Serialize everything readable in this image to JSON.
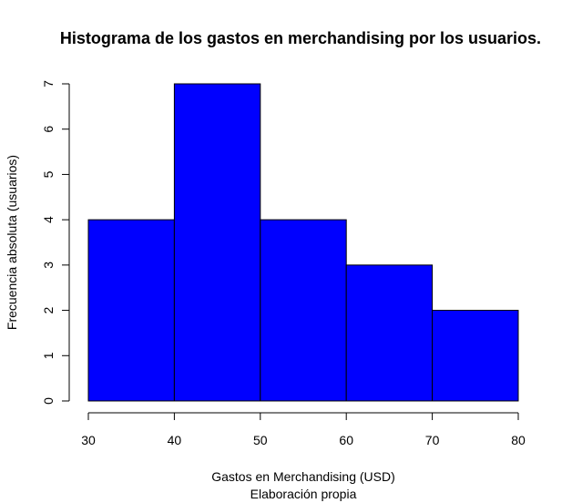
{
  "chart_data": {
    "type": "bar",
    "title": "Histograma de los gastos en merchandising por los usuarios.",
    "xlabel": "Gastos en Merchandising (USD)",
    "subcaption": "Elaboración propia",
    "ylabel": "Frecuencia absoluta (usuarios)",
    "bins": [
      {
        "from": 30,
        "to": 40,
        "count": 4
      },
      {
        "from": 40,
        "to": 50,
        "count": 7
      },
      {
        "from": 50,
        "to": 60,
        "count": 4
      },
      {
        "from": 60,
        "to": 70,
        "count": 3
      },
      {
        "from": 70,
        "to": 80,
        "count": 2
      }
    ],
    "xlim": [
      30,
      80
    ],
    "ylim": [
      0,
      7
    ],
    "xticks": [
      "30",
      "40",
      "50",
      "60",
      "70",
      "80"
    ],
    "yticks": [
      "0",
      "1",
      "2",
      "3",
      "4",
      "5",
      "6",
      "7"
    ],
    "grid": false,
    "bar_color": "#0000ff",
    "bar_border_color": "#000000"
  }
}
